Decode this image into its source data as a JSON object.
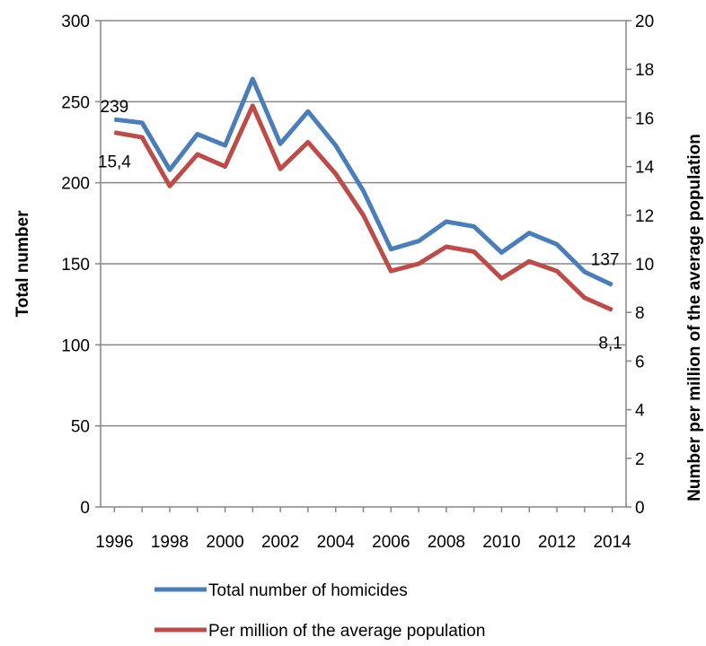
{
  "chart_data": {
    "type": "line",
    "title": "",
    "x": [
      1996,
      1997,
      1998,
      1999,
      2000,
      2001,
      2002,
      2003,
      2004,
      2005,
      2006,
      2007,
      2008,
      2009,
      2010,
      2011,
      2012,
      2013,
      2014
    ],
    "x_tick_labels": [
      "1996",
      "1998",
      "2000",
      "2002",
      "2004",
      "2006",
      "2008",
      "2010",
      "2012",
      "2014"
    ],
    "y_left_label": "Total number",
    "y_left_lim": [
      0,
      300
    ],
    "y_left_ticks": [
      "0",
      "50",
      "100",
      "150",
      "200",
      "250",
      "300"
    ],
    "y_right_label": "Number per million of the average population",
    "y_right_lim": [
      0,
      20
    ],
    "y_right_ticks": [
      "0",
      "2",
      "4",
      "6",
      "8",
      "10",
      "12",
      "14",
      "16",
      "18",
      "20"
    ],
    "grid": true,
    "legend_position": "bottom",
    "series": [
      {
        "name": "Total number of homicides",
        "axis": "left",
        "color": "#4a7ebb",
        "values": [
          239,
          237,
          208,
          230,
          223,
          264,
          224,
          244,
          223,
          195,
          159,
          164,
          176,
          173,
          157,
          169,
          162,
          145,
          137
        ],
        "labels": {
          "first": "239",
          "last": "137"
        }
      },
      {
        "name": "Per million of the average population",
        "axis": "right",
        "color": "#be4b48",
        "values": [
          15.4,
          15.2,
          13.2,
          14.5,
          14.0,
          16.5,
          13.9,
          15.0,
          13.7,
          12.0,
          9.7,
          10.0,
          10.7,
          10.5,
          9.4,
          10.1,
          9.7,
          8.6,
          8.1
        ],
        "labels": {
          "first": "15,4",
          "last": "8,1"
        }
      }
    ]
  }
}
